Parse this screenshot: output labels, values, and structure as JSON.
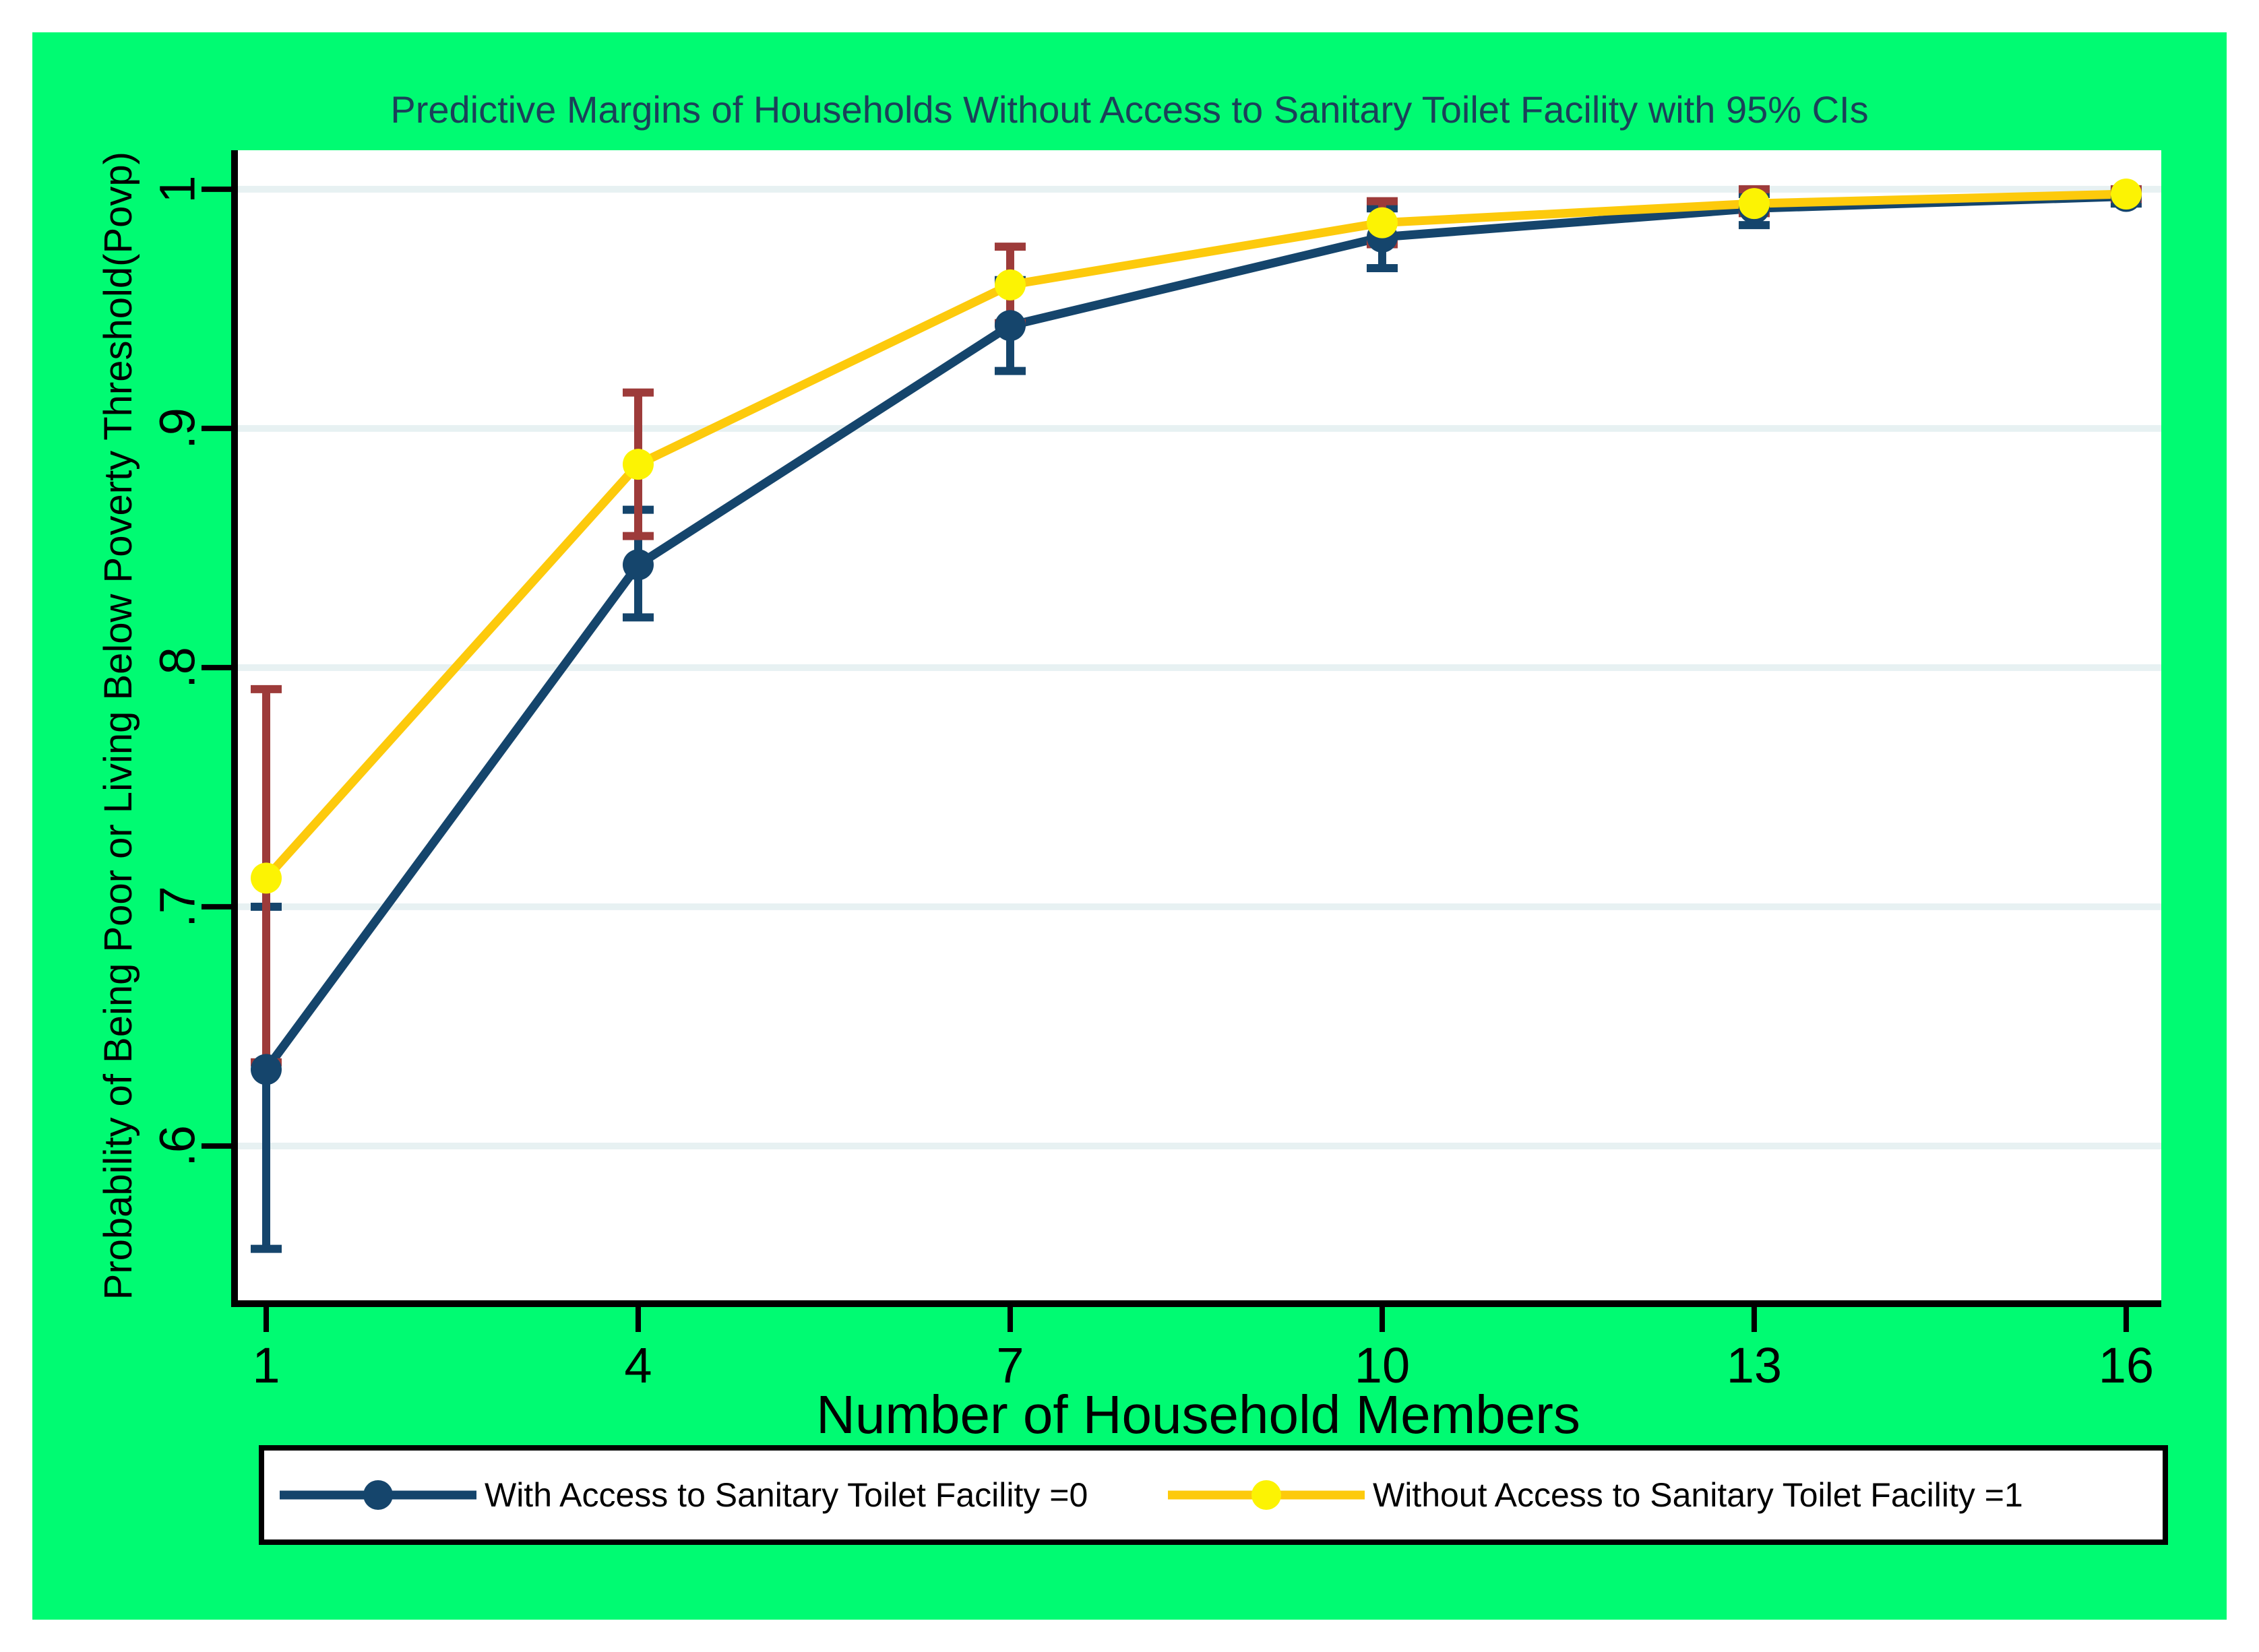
{
  "chart_data": {
    "type": "line",
    "title": "Predictive Margins of Households Without Access to Sanitary Toilet Facility with 95% CIs",
    "xlabel": "Number of Household Members",
    "ylabel": "Probability of Being Poor or Living Below Poverty Threshold(Povp)",
    "x": [
      1,
      4,
      7,
      10,
      13,
      16
    ],
    "xticks": [
      {
        "value": 1,
        "label": "1"
      },
      {
        "value": 4,
        "label": "4"
      },
      {
        "value": 7,
        "label": "7"
      },
      {
        "value": 10,
        "label": "10"
      },
      {
        "value": 13,
        "label": "13"
      },
      {
        "value": 16,
        "label": "16"
      }
    ],
    "yticks": [
      {
        "value": 0.6,
        "label": ".6"
      },
      {
        "value": 0.7,
        "label": ".7"
      },
      {
        "value": 0.8,
        "label": ".8"
      },
      {
        "value": 0.9,
        "label": ".9"
      },
      {
        "value": 1.0,
        "label": "1"
      }
    ],
    "xlim": [
      0.75,
      16.283
    ],
    "ylim": [
      0.5352,
      1.0163
    ],
    "grid": true,
    "legend_position": "bottom",
    "series": [
      {
        "name": "With Access to Sanitary Toilet Facility =0",
        "color": "#15456c",
        "marker_color": "#15456c",
        "ci_color": "#15456c",
        "values": [
          0.632,
          0.843,
          0.943,
          0.98,
          0.992,
          0.997
        ],
        "ci_low": [
          0.557,
          0.821,
          0.924,
          0.967,
          0.985,
          0.994
        ],
        "ci_high": [
          0.7,
          0.866,
          0.962,
          0.992,
          0.998,
          0.999
        ]
      },
      {
        "name": "Without Access to Sanitary Toilet Facility =1",
        "color": "#fdca0c",
        "marker_color": "#fcf303",
        "ci_color": "#9d3b3a",
        "values": [
          0.712,
          0.885,
          0.96,
          0.986,
          0.994,
          0.998
        ],
        "ci_low": [
          0.635,
          0.855,
          0.944,
          0.977,
          0.99,
          0.996
        ],
        "ci_high": [
          0.791,
          0.915,
          0.976,
          0.995,
          1.0,
          1.0
        ]
      }
    ]
  },
  "colors": {
    "background_green": "#00fb72",
    "title_navy": "#1b4159",
    "plot_background": "#ffffff",
    "gridline": "#e7f1f2",
    "axis": "#000000",
    "navy": "#15456c",
    "gold_line": "#fdca0c",
    "yellow_marker": "#fcf303",
    "maroon_ci": "#9d3b3a"
  }
}
